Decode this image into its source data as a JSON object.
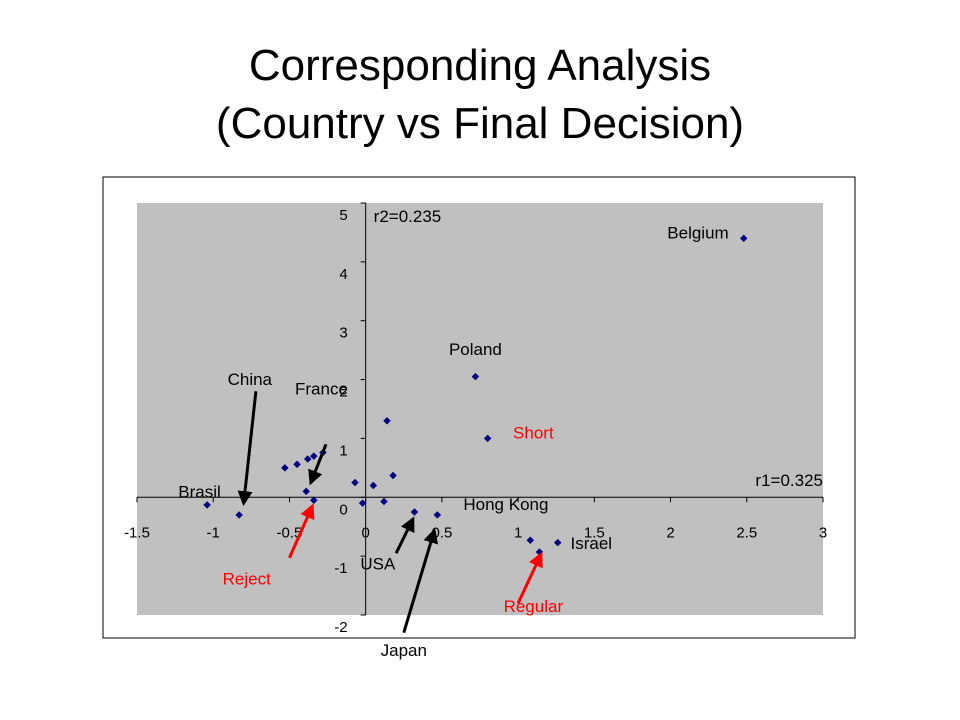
{
  "title_line1": "Corresponding Analysis",
  "title_line2": "(Country vs Final Decision)",
  "chart_data": {
    "type": "scatter",
    "title": "Corresponding Analysis (Country vs Final Decision)",
    "xlim": [
      -1.5,
      3
    ],
    "ylim": [
      -2,
      5
    ],
    "x_ticks": [
      -1.5,
      -1,
      -0.5,
      0,
      0.5,
      1,
      1.5,
      2,
      2.5,
      3
    ],
    "y_ticks": [
      -2,
      -1,
      0,
      1,
      2,
      3,
      4,
      5
    ],
    "x_tick_labels": [
      "-1.5",
      "-1",
      "-0.5",
      "0",
      "0.5",
      "1",
      "1.5",
      "2",
      "2.5",
      "3"
    ],
    "y_tick_labels": [
      "-2",
      "-1",
      "0",
      "1",
      "2",
      "3",
      "4",
      "5"
    ],
    "grid": false,
    "plot_background": "#c0c0c0",
    "point_color": "#000080",
    "axis_labels": {
      "x": "r1=0.325",
      "y": "r2=0.235"
    },
    "points": [
      {
        "x": -1.04,
        "y": -0.13
      },
      {
        "x": -0.83,
        "y": -0.3
      },
      {
        "x": -0.53,
        "y": 0.5
      },
      {
        "x": -0.45,
        "y": 0.56
      },
      {
        "x": -0.38,
        "y": 0.65
      },
      {
        "x": -0.34,
        "y": 0.7
      },
      {
        "x": -0.28,
        "y": 0.76
      },
      {
        "x": -0.39,
        "y": 0.1
      },
      {
        "x": -0.34,
        "y": -0.05
      },
      {
        "x": -0.07,
        "y": 0.25
      },
      {
        "x": -0.02,
        "y": -0.1
      },
      {
        "x": 0.05,
        "y": 0.2
      },
      {
        "x": 0.12,
        "y": -0.07
      },
      {
        "x": 0.14,
        "y": 1.3
      },
      {
        "x": 0.18,
        "y": 0.37
      },
      {
        "x": 0.32,
        "y": -0.25
      },
      {
        "x": 0.47,
        "y": -0.3
      },
      {
        "x": 0.72,
        "y": 2.05
      },
      {
        "x": 0.8,
        "y": 1.0
      },
      {
        "x": 1.08,
        "y": -0.73
      },
      {
        "x": 1.14,
        "y": -0.93
      },
      {
        "x": 1.26,
        "y": -0.77
      },
      {
        "x": 2.48,
        "y": 4.4
      }
    ],
    "labels": [
      {
        "text": "Belgium",
        "x": 2.18,
        "y": 4.4,
        "color": "#000000"
      },
      {
        "text": "Poland",
        "x": 0.72,
        "y": 2.42,
        "color": "#000000"
      },
      {
        "text": "China",
        "x": -0.76,
        "y": 1.91,
        "color": "#000000"
      },
      {
        "text": "France",
        "x": -0.29,
        "y": 1.75,
        "color": "#000000"
      },
      {
        "text": "Short",
        "x": 1.1,
        "y": 1.0,
        "color": "#ff0000"
      },
      {
        "text": "Brasil",
        "x": -1.09,
        "y": 0.0,
        "color": "#000000"
      },
      {
        "text": "Hong Kong",
        "x": 0.92,
        "y": -0.22,
        "color": "#000000"
      },
      {
        "text": "Israel",
        "x": 1.48,
        "y": -0.88,
        "color": "#000000"
      },
      {
        "text": "USA",
        "x": 0.08,
        "y": -1.23,
        "color": "#000000"
      },
      {
        "text": "Reject",
        "x": -0.78,
        "y": -1.48,
        "color": "#ff0000"
      },
      {
        "text": "Regular",
        "x": 1.1,
        "y": -1.95,
        "color": "#ff0000"
      },
      {
        "text": "Japan",
        "x": 0.25,
        "y": -2.7,
        "color": "#000000"
      }
    ],
    "arrows": [
      {
        "from": [
          -0.72,
          1.8
        ],
        "to": [
          -0.8,
          -0.1
        ],
        "color": "#000000"
      },
      {
        "from": [
          -0.26,
          0.9
        ],
        "to": [
          -0.36,
          0.25
        ],
        "color": "#000000"
      },
      {
        "from": [
          -0.5,
          -1.03
        ],
        "to": [
          -0.35,
          -0.15
        ],
        "color": "#ff0000"
      },
      {
        "from": [
          0.2,
          -0.95
        ],
        "to": [
          0.31,
          -0.37
        ],
        "color": "#000000"
      },
      {
        "from": [
          0.25,
          -2.3
        ],
        "to": [
          0.45,
          -0.57
        ],
        "color": "#000000"
      },
      {
        "from": [
          1.0,
          -1.8
        ],
        "to": [
          1.15,
          -0.97
        ],
        "color": "#ff0000"
      }
    ]
  }
}
